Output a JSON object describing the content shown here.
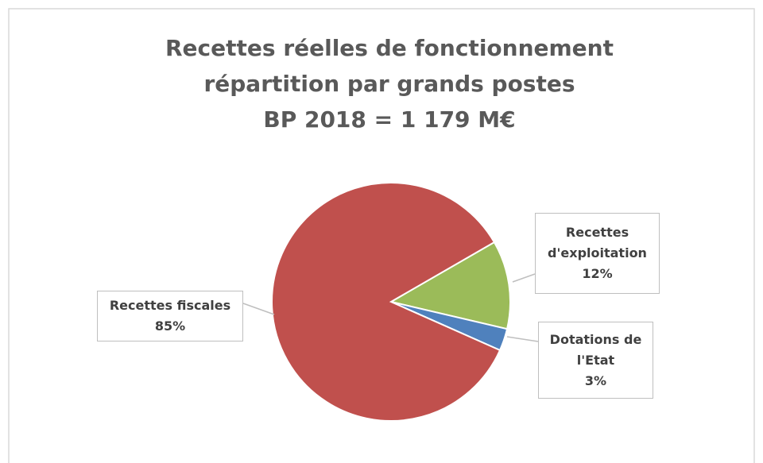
{
  "chart_data": {
    "type": "pie",
    "title": [
      "Recettes réelles de fonctionnement",
      "répartition par grands postes",
      "BP 2018 = 1 179 M€"
    ],
    "categories": [
      "Recettes d'exploitation",
      "Dotations de l'Etat",
      "Recettes fiscales"
    ],
    "values": [
      12,
      3,
      85
    ],
    "value_labels": [
      "12%",
      "3%",
      "85%"
    ],
    "colors": [
      "#9bbb59",
      "#4f81bd",
      "#c0504d"
    ]
  }
}
